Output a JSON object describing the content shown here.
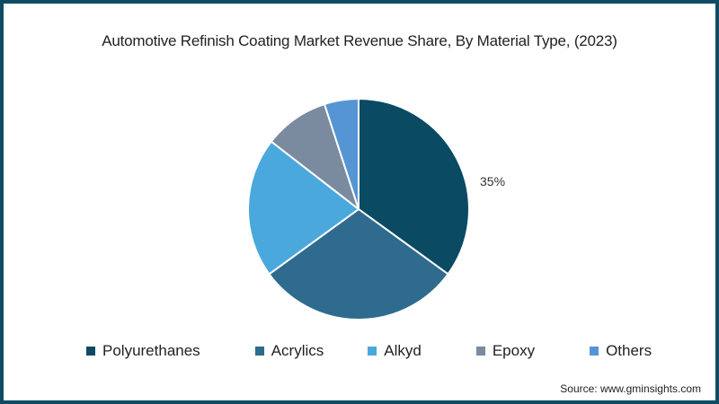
{
  "chart_data": {
    "type": "pie",
    "title": "Automotive Refinish Coating Market Revenue Share, By Material Type, (2023)",
    "categories": [
      "Polyurethanes",
      "Acrylics",
      "Alkyd",
      "Epoxy",
      "Others"
    ],
    "values": [
      35,
      30,
      20.5,
      9.5,
      5
    ],
    "colors": [
      "#0b4a63",
      "#2e6b8e",
      "#4aa8dc",
      "#7a8a9f",
      "#5595d4"
    ],
    "data_labels": [
      {
        "category": "Polyurethanes",
        "text": "35%"
      }
    ],
    "start_angle": "12 o'clock",
    "direction": "clockwise",
    "legend_position": "bottom"
  },
  "chart": {
    "title": "Automotive Refinish Coating Market Revenue Share, By Material Type, (2023)",
    "data_label": "35%",
    "legend": [
      {
        "label": "Polyurethanes",
        "color": "#0b4a63"
      },
      {
        "label": "Acrylics",
        "color": "#2e6b8e"
      },
      {
        "label": "Alkyd",
        "color": "#4aa8dc"
      },
      {
        "label": "Epoxy",
        "color": "#7a8a9f"
      },
      {
        "label": "Others",
        "color": "#5595d4"
      }
    ],
    "source": "Source: www.gminsights.com"
  },
  "theme": {
    "border_color": "#0f4c63"
  }
}
